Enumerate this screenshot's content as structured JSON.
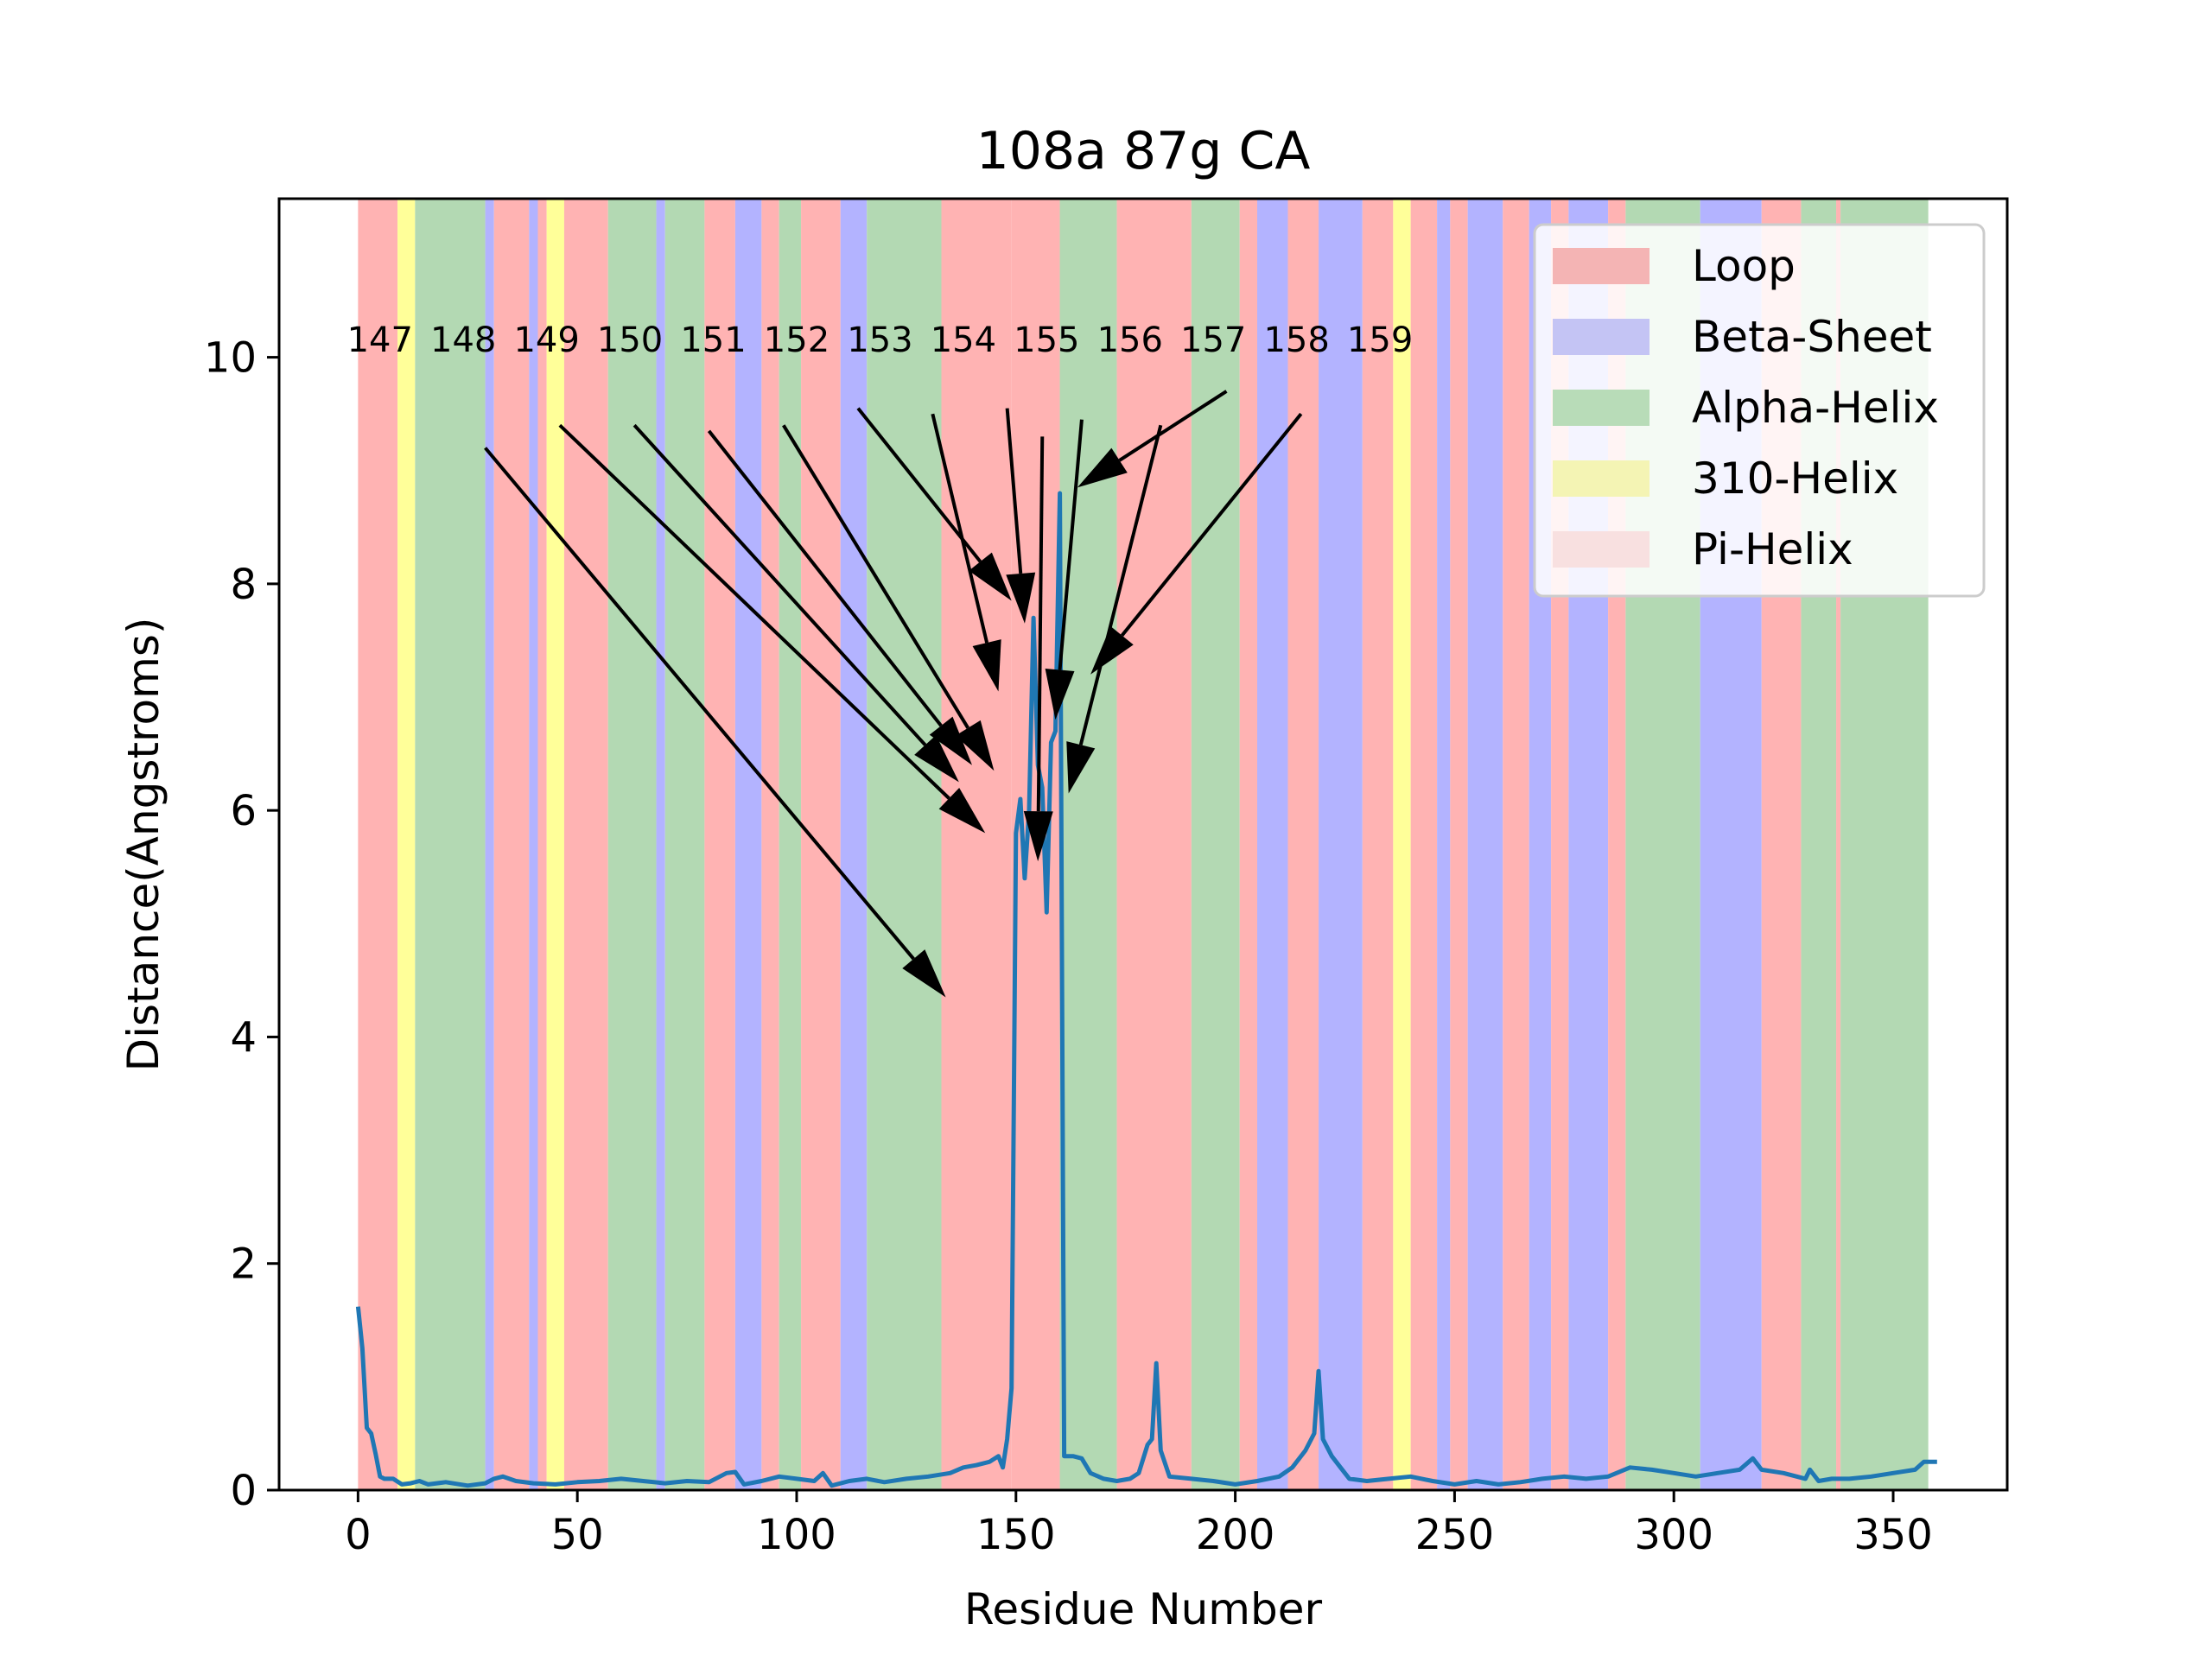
{
  "chart_data": {
    "type": "line",
    "title": "108a 87g CA",
    "xlabel": "Residue Number",
    "ylabel": "Distance(Angstroms)",
    "xlim": [
      -18,
      376
    ],
    "ylim": [
      0,
      11.4
    ],
    "xticks": [
      0,
      50,
      100,
      150,
      200,
      250,
      300,
      350
    ],
    "yticks": [
      0,
      2,
      4,
      6,
      8,
      10
    ],
    "grid": false,
    "legend": {
      "placement": "top-right",
      "entries": [
        {
          "label": "Loop",
          "color": "#f4b4b4"
        },
        {
          "label": "Beta-Sheet",
          "color": "#c4c4f4"
        },
        {
          "label": "Alpha-Helix",
          "color": "#b8dcb8"
        },
        {
          "label": "310-Helix",
          "color": "#f4f4b4"
        },
        {
          "label": "Pi-Helix",
          "color": "#f8e0e0"
        }
      ]
    },
    "structure_colors": {
      "L": "#ffb3b3",
      "B": "#b3b3ff",
      "A": "#b3d9b3",
      "T": "#ffff99"
    },
    "secondary_structure": [
      [
        0,
        9,
        "L"
      ],
      [
        9,
        13,
        "T"
      ],
      [
        13,
        29,
        "A"
      ],
      [
        29,
        31,
        "B"
      ],
      [
        31,
        39,
        "L"
      ],
      [
        39,
        41,
        "B"
      ],
      [
        41,
        43,
        "L"
      ],
      [
        43,
        47,
        "T"
      ],
      [
        47,
        57,
        "L"
      ],
      [
        57,
        68,
        "A"
      ],
      [
        68,
        70,
        "B"
      ],
      [
        70,
        79,
        "A"
      ],
      [
        79,
        86,
        "L"
      ],
      [
        86,
        92,
        "B"
      ],
      [
        92,
        96,
        "L"
      ],
      [
        96,
        101,
        "A"
      ],
      [
        101,
        110,
        "L"
      ],
      [
        110,
        116,
        "B"
      ],
      [
        116,
        133,
        "A"
      ],
      [
        133,
        149,
        "L"
      ],
      [
        149,
        160,
        "L"
      ],
      [
        160,
        173,
        "A"
      ],
      [
        173,
        190,
        "L"
      ],
      [
        190,
        201,
        "A"
      ],
      [
        201,
        205,
        "L"
      ],
      [
        205,
        212,
        "B"
      ],
      [
        212,
        219,
        "L"
      ],
      [
        219,
        229,
        "B"
      ],
      [
        229,
        236,
        "L"
      ],
      [
        236,
        240,
        "T"
      ],
      [
        240,
        246,
        "L"
      ],
      [
        246,
        249,
        "B"
      ],
      [
        249,
        253,
        "L"
      ],
      [
        253,
        261,
        "B"
      ],
      [
        261,
        267,
        "L"
      ],
      [
        267,
        272,
        "B"
      ],
      [
        272,
        276,
        "L"
      ],
      [
        276,
        285,
        "B"
      ],
      [
        285,
        289,
        "L"
      ],
      [
        289,
        306,
        "A"
      ],
      [
        306,
        320,
        "B"
      ],
      [
        320,
        329,
        "L"
      ],
      [
        329,
        337,
        "A"
      ],
      [
        337,
        338,
        "L"
      ],
      [
        338,
        358,
        "A"
      ]
    ],
    "series": [
      {
        "color": "#1f77b4",
        "points": [
          [
            0,
            1.62
          ],
          [
            1,
            1.25
          ],
          [
            2,
            0.55
          ],
          [
            3,
            0.5
          ],
          [
            4,
            0.32
          ],
          [
            5,
            0.12
          ],
          [
            6,
            0.1
          ],
          [
            8,
            0.1
          ],
          [
            10,
            0.05
          ],
          [
            12,
            0.06
          ],
          [
            14,
            0.08
          ],
          [
            16,
            0.05
          ],
          [
            20,
            0.07
          ],
          [
            25,
            0.04
          ],
          [
            29,
            0.06
          ],
          [
            31,
            0.1
          ],
          [
            33,
            0.12
          ],
          [
            36,
            0.08
          ],
          [
            40,
            0.06
          ],
          [
            45,
            0.05
          ],
          [
            50,
            0.07
          ],
          [
            55,
            0.08
          ],
          [
            60,
            0.1
          ],
          [
            65,
            0.08
          ],
          [
            70,
            0.06
          ],
          [
            75,
            0.08
          ],
          [
            80,
            0.07
          ],
          [
            84,
            0.15
          ],
          [
            86,
            0.16
          ],
          [
            88,
            0.05
          ],
          [
            92,
            0.08
          ],
          [
            96,
            0.12
          ],
          [
            100,
            0.1
          ],
          [
            104,
            0.08
          ],
          [
            106,
            0.15
          ],
          [
            108,
            0.04
          ],
          [
            112,
            0.08
          ],
          [
            116,
            0.1
          ],
          [
            120,
            0.07
          ],
          [
            125,
            0.1
          ],
          [
            130,
            0.12
          ],
          [
            135,
            0.15
          ],
          [
            138,
            0.2
          ],
          [
            141,
            0.22
          ],
          [
            144,
            0.25
          ],
          [
            146,
            0.3
          ],
          [
            147,
            0.2
          ],
          [
            148,
            0.45
          ],
          [
            149,
            0.9
          ],
          [
            150,
            5.8
          ],
          [
            151,
            6.1
          ],
          [
            152,
            5.4
          ],
          [
            153,
            6.0
          ],
          [
            154,
            7.7
          ],
          [
            155,
            6.4
          ],
          [
            156,
            6.2
          ],
          [
            157,
            5.1
          ],
          [
            158,
            6.6
          ],
          [
            159,
            6.7
          ],
          [
            160,
            8.8
          ],
          [
            161,
            0.3
          ],
          [
            163,
            0.3
          ],
          [
            165,
            0.28
          ],
          [
            167,
            0.15
          ],
          [
            170,
            0.1
          ],
          [
            173,
            0.08
          ],
          [
            176,
            0.1
          ],
          [
            178,
            0.15
          ],
          [
            180,
            0.4
          ],
          [
            181,
            0.45
          ],
          [
            182,
            1.12
          ],
          [
            183,
            0.35
          ],
          [
            185,
            0.12
          ],
          [
            190,
            0.1
          ],
          [
            195,
            0.08
          ],
          [
            200,
            0.05
          ],
          [
            205,
            0.08
          ],
          [
            210,
            0.12
          ],
          [
            213,
            0.2
          ],
          [
            216,
            0.35
          ],
          [
            218,
            0.5
          ],
          [
            219,
            1.05
          ],
          [
            220,
            0.45
          ],
          [
            222,
            0.3
          ],
          [
            224,
            0.2
          ],
          [
            226,
            0.1
          ],
          [
            230,
            0.08
          ],
          [
            235,
            0.1
          ],
          [
            240,
            0.12
          ],
          [
            245,
            0.08
          ],
          [
            250,
            0.05
          ],
          [
            255,
            0.08
          ],
          [
            260,
            0.05
          ],
          [
            265,
            0.07
          ],
          [
            270,
            0.1
          ],
          [
            275,
            0.12
          ],
          [
            280,
            0.1
          ],
          [
            285,
            0.12
          ],
          [
            290,
            0.2
          ],
          [
            295,
            0.18
          ],
          [
            300,
            0.15
          ],
          [
            305,
            0.12
          ],
          [
            310,
            0.15
          ],
          [
            315,
            0.18
          ],
          [
            318,
            0.28
          ],
          [
            320,
            0.18
          ],
          [
            325,
            0.15
          ],
          [
            330,
            0.1
          ],
          [
            331,
            0.18
          ],
          [
            333,
            0.08
          ],
          [
            336,
            0.1
          ],
          [
            340,
            0.1
          ],
          [
            345,
            0.12
          ],
          [
            350,
            0.15
          ],
          [
            355,
            0.18
          ],
          [
            357,
            0.25
          ],
          [
            360,
            0.25
          ]
        ]
      }
    ],
    "annotations": [
      {
        "text": "147",
        "text_at": [
          5,
          10.05
        ],
        "arrow_from": [
          29,
          9.2
        ],
        "arrow_to": [
          134,
          4.35
        ]
      },
      {
        "text": "148",
        "text_at": [
          24,
          10.05
        ],
        "arrow_from": [
          46,
          9.4
        ],
        "arrow_to": [
          143,
          5.8
        ]
      },
      {
        "text": "149",
        "text_at": [
          43,
          10.05
        ],
        "arrow_from": [
          63,
          9.4
        ],
        "arrow_to": [
          137,
          6.25
        ]
      },
      {
        "text": "150",
        "text_at": [
          62,
          10.05
        ],
        "arrow_from": [
          80,
          9.35
        ],
        "arrow_to": [
          140,
          6.4
        ]
      },
      {
        "text": "151",
        "text_at": [
          81,
          10.05
        ],
        "arrow_from": [
          97,
          9.4
        ],
        "arrow_to": [
          145,
          6.35
        ]
      },
      {
        "text": "152",
        "text_at": [
          100,
          10.05
        ],
        "arrow_from": [
          114,
          9.55
        ],
        "arrow_to": [
          149,
          7.85
        ]
      },
      {
        "text": "153",
        "text_at": [
          119,
          10.05
        ],
        "arrow_from": [
          131,
          9.5
        ],
        "arrow_to": [
          146,
          7.05
        ]
      },
      {
        "text": "154",
        "text_at": [
          138,
          10.05
        ],
        "arrow_from": [
          148,
          9.55
        ],
        "arrow_to": [
          152,
          7.65
        ]
      },
      {
        "text": "155",
        "text_at": [
          157,
          10.05
        ],
        "arrow_from": [
          156,
          9.3
        ],
        "arrow_to": [
          155,
          5.55
        ]
      },
      {
        "text": "156",
        "text_at": [
          176,
          10.05
        ],
        "arrow_from": [
          165,
          9.45
        ],
        "arrow_to": [
          159,
          6.8
        ]
      },
      {
        "text": "157",
        "text_at": [
          195,
          10.05
        ],
        "arrow_from": [
          198,
          9.7
        ],
        "arrow_to": [
          164,
          8.85
        ]
      },
      {
        "text": "158",
        "text_at": [
          214,
          10.05
        ],
        "arrow_from": [
          183,
          9.4
        ],
        "arrow_to": [
          162,
          6.15
        ]
      },
      {
        "text": "159",
        "text_at": [
          233,
          10.05
        ],
        "arrow_from": [
          215,
          9.5
        ],
        "arrow_to": [
          167,
          7.2
        ]
      }
    ]
  }
}
